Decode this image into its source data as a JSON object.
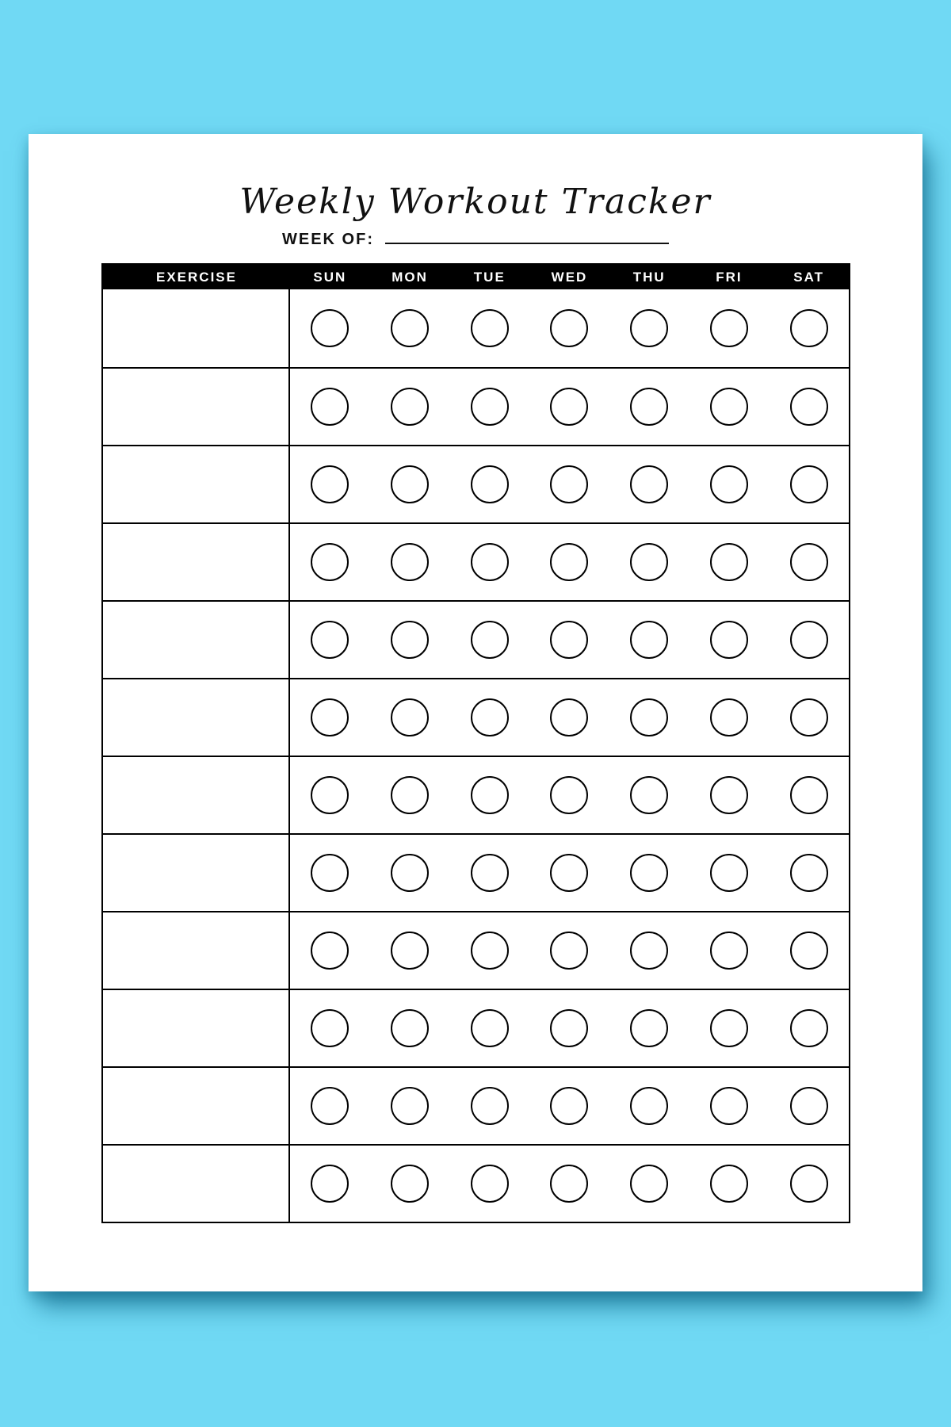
{
  "colors": {
    "background": "#70D9F4",
    "page": "#FFFFFF",
    "ink": "#000000",
    "header_bg": "#000000",
    "header_text": "#FFFFFF"
  },
  "page": {
    "title": "Weekly Workout Tracker",
    "week_of_label": "WEEK OF:",
    "week_of_value": ""
  },
  "table": {
    "exercise_header": "EXERCISE",
    "days": [
      "SUN",
      "MON",
      "TUE",
      "WED",
      "THU",
      "FRI",
      "SAT"
    ],
    "row_count": 12
  }
}
